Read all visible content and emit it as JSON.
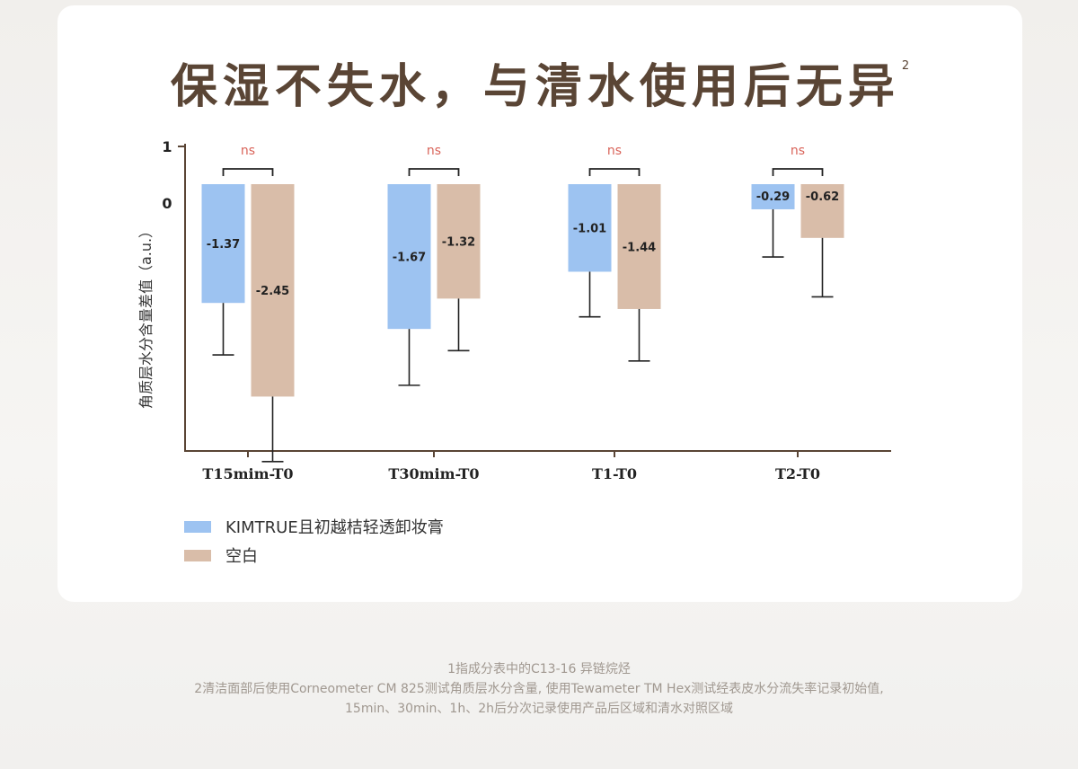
{
  "page": {
    "title": "保湿不失水，与清水使用后无异",
    "title_note": "2",
    "footnotes": [
      "1指成分表中的C13-16 异链烷烃",
      "2清洁面部后使用Corneometer CM 825测试角质层水分含量, 使用Tewameter TM Hex测试经表皮水分流失率记录初始值,",
      "15min、30min、1h、2h后分次记录使用产品后区域和清水对照区域"
    ]
  },
  "chart_data": {
    "type": "bar",
    "title": "保湿不失水，与清水使用后无异",
    "ylabel": "角质层水分含量差值（a.u.）",
    "xlabel": "",
    "categories": [
      "T15mim-T0",
      "T30mim-T0",
      "T1-T0",
      "T2-T0"
    ],
    "yticks": [
      "1",
      "0"
    ],
    "ylim": [
      -4.3,
      1
    ],
    "significance": [
      "ns",
      "ns",
      "ns",
      "ns"
    ],
    "series": [
      {
        "name": "KIMTRUE且初越桔轻透卸妆膏",
        "color": "#9dc3f1",
        "values": [
          -1.37,
          -1.67,
          -1.01,
          -0.29
        ],
        "value_labels": [
          "-1.37",
          "-1.67",
          "-1.01",
          "-0.29"
        ],
        "error": [
          0.6,
          0.65,
          0.52,
          0.55
        ]
      },
      {
        "name": "空白",
        "color": "#d9bda9",
        "values": [
          -2.45,
          -1.32,
          -1.44,
          -0.62
        ],
        "value_labels": [
          "-2.45",
          "-1.32",
          "-1.44",
          "-0.62"
        ],
        "error": [
          0.75,
          0.6,
          0.6,
          0.68
        ]
      }
    ],
    "grid": false,
    "legend_position": "bottom-left",
    "axis_color": "#5a4535",
    "sig_color": "#d9645a"
  }
}
